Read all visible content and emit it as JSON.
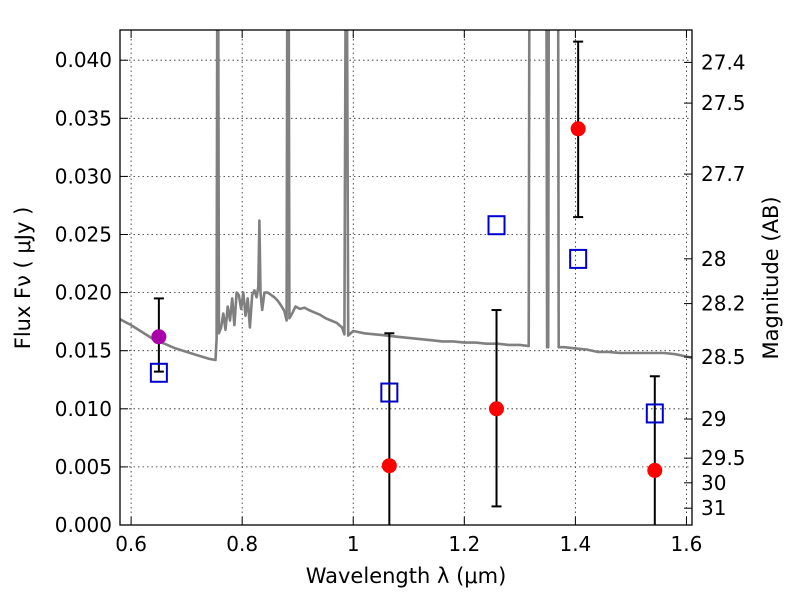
{
  "chart_data": {
    "type": "scatter",
    "xlabel": "Wavelength  λ (μm)",
    "ylabel": "Flux  Fν  ( μJy )",
    "ylabel_right": "Magnitude (AB)",
    "xlim": [
      0.58,
      1.61
    ],
    "ylim": [
      0.0,
      0.0426
    ],
    "grid": true,
    "x_ticks": [
      0.6,
      0.8,
      1.0,
      1.2,
      1.4,
      1.6
    ],
    "x_tick_labels": [
      "0.6",
      "0.8",
      "1",
      "1.2",
      "1.4",
      "1.6"
    ],
    "y_ticks": [
      0.0,
      0.005,
      0.01,
      0.015,
      0.02,
      0.025,
      0.03,
      0.035,
      0.04
    ],
    "y_tick_labels": [
      "0.000",
      "0.005",
      "0.010",
      "0.015",
      "0.020",
      "0.025",
      "0.030",
      "0.035",
      "0.040"
    ],
    "right_ticks": [
      {
        "label": "27.4",
        "mag": 27.4
      },
      {
        "label": "27.5",
        "mag": 27.5
      },
      {
        "label": "27.7",
        "mag": 27.7
      },
      {
        "label": "28",
        "mag": 28.0
      },
      {
        "label": "28.2",
        "mag": 28.2
      },
      {
        "label": "28.5",
        "mag": 28.5
      },
      {
        "label": "29",
        "mag": 29.0
      },
      {
        "label": "29.5",
        "mag": 29.5
      },
      {
        "label": "30",
        "mag": 30.0
      },
      {
        "label": "31",
        "mag": 31.0
      }
    ],
    "model_spectrum": {
      "color": "#808080",
      "points": [
        [
          0.58,
          0.0177
        ],
        [
          0.6,
          0.0172
        ],
        [
          0.62,
          0.0166
        ],
        [
          0.64,
          0.016
        ],
        [
          0.66,
          0.0156
        ],
        [
          0.68,
          0.0152
        ],
        [
          0.7,
          0.0149
        ],
        [
          0.72,
          0.0146
        ],
        [
          0.74,
          0.0143
        ],
        [
          0.752,
          0.0142
        ],
        [
          0.754,
          0.016
        ],
        [
          0.755,
          0.043
        ],
        [
          0.757,
          0.043
        ],
        [
          0.758,
          0.0165
        ],
        [
          0.762,
          0.017
        ],
        [
          0.766,
          0.0182
        ],
        [
          0.77,
          0.0168
        ],
        [
          0.774,
          0.0188
        ],
        [
          0.778,
          0.0176
        ],
        [
          0.782,
          0.0195
        ],
        [
          0.786,
          0.0172
        ],
        [
          0.79,
          0.02
        ],
        [
          0.794,
          0.0198
        ],
        [
          0.798,
          0.0186
        ],
        [
          0.802,
          0.02
        ],
        [
          0.806,
          0.018
        ],
        [
          0.81,
          0.0195
        ],
        [
          0.814,
          0.017
        ],
        [
          0.818,
          0.0198
        ],
        [
          0.822,
          0.0202
        ],
        [
          0.826,
          0.0196
        ],
        [
          0.829,
          0.0205
        ],
        [
          0.831,
          0.0262
        ],
        [
          0.833,
          0.02
        ],
        [
          0.836,
          0.0185
        ],
        [
          0.84,
          0.02
        ],
        [
          0.846,
          0.02
        ],
        [
          0.852,
          0.0198
        ],
        [
          0.858,
          0.0196
        ],
        [
          0.864,
          0.0193
        ],
        [
          0.87,
          0.0189
        ],
        [
          0.876,
          0.0184
        ],
        [
          0.88,
          0.0176
        ],
        [
          0.881,
          0.043
        ],
        [
          0.884,
          0.043
        ],
        [
          0.885,
          0.0178
        ],
        [
          0.89,
          0.0182
        ],
        [
          0.896,
          0.0188
        ],
        [
          0.904,
          0.0186
        ],
        [
          0.912,
          0.0187
        ],
        [
          0.92,
          0.0185
        ],
        [
          0.93,
          0.0183
        ],
        [
          0.94,
          0.0181
        ],
        [
          0.95,
          0.0178
        ],
        [
          0.96,
          0.0176
        ],
        [
          0.97,
          0.0174
        ],
        [
          0.98,
          0.017
        ],
        [
          0.984,
          0.0164
        ],
        [
          0.986,
          0.043
        ],
        [
          0.989,
          0.043
        ],
        [
          0.991,
          0.0163
        ],
        [
          1.0,
          0.0167
        ],
        [
          1.02,
          0.0165
        ],
        [
          1.04,
          0.0164
        ],
        [
          1.06,
          0.0163
        ],
        [
          1.08,
          0.0162
        ],
        [
          1.1,
          0.0161
        ],
        [
          1.12,
          0.016
        ],
        [
          1.14,
          0.0159
        ],
        [
          1.16,
          0.0158
        ],
        [
          1.18,
          0.0158
        ],
        [
          1.2,
          0.0157
        ],
        [
          1.22,
          0.0157
        ],
        [
          1.24,
          0.0156
        ],
        [
          1.26,
          0.0156
        ],
        [
          1.28,
          0.0155
        ],
        [
          1.3,
          0.0155
        ],
        [
          1.316,
          0.0154
        ],
        [
          1.317,
          0.043
        ],
        [
          1.345,
          0.043
        ],
        [
          1.348,
          0.043
        ],
        [
          1.349,
          0.0153
        ],
        [
          1.351,
          0.0153
        ],
        [
          1.352,
          0.043
        ],
        [
          1.369,
          0.043
        ],
        [
          1.37,
          0.0153
        ],
        [
          1.38,
          0.0153
        ],
        [
          1.4,
          0.0152
        ],
        [
          1.42,
          0.0151
        ],
        [
          1.44,
          0.0149
        ],
        [
          1.46,
          0.0149
        ],
        [
          1.48,
          0.0148
        ],
        [
          1.5,
          0.0148
        ],
        [
          1.52,
          0.0148
        ],
        [
          1.54,
          0.0148
        ],
        [
          1.56,
          0.0148
        ],
        [
          1.58,
          0.0147
        ],
        [
          1.6,
          0.0145
        ],
        [
          1.61,
          0.0144
        ]
      ]
    },
    "observed": {
      "color": "#ff0000",
      "points": [
        {
          "x": 1.065,
          "y": 0.0051,
          "err_low": 0.0114,
          "err_high": 0.0114
        },
        {
          "x": 1.258,
          "y": 0.01,
          "err_low": 0.0084,
          "err_high": 0.0085
        },
        {
          "x": 1.405,
          "y": 0.0341,
          "err_low": 0.0076,
          "err_high": 0.0075
        },
        {
          "x": 1.543,
          "y": 0.0047,
          "err_low": 0.008,
          "err_high": 0.0081
        }
      ]
    },
    "observed_extra": {
      "color": "#aa00aa",
      "points": [
        {
          "x": 0.65,
          "y": 0.0162,
          "err_low": 0.003,
          "err_high": 0.0033
        }
      ]
    },
    "model_photometry": {
      "color": "#0000cc",
      "points": [
        {
          "x": 0.65,
          "y": 0.0131
        },
        {
          "x": 1.065,
          "y": 0.0114
        },
        {
          "x": 1.258,
          "y": 0.0258
        },
        {
          "x": 1.405,
          "y": 0.0229
        },
        {
          "x": 1.543,
          "y": 0.0096
        }
      ]
    }
  }
}
